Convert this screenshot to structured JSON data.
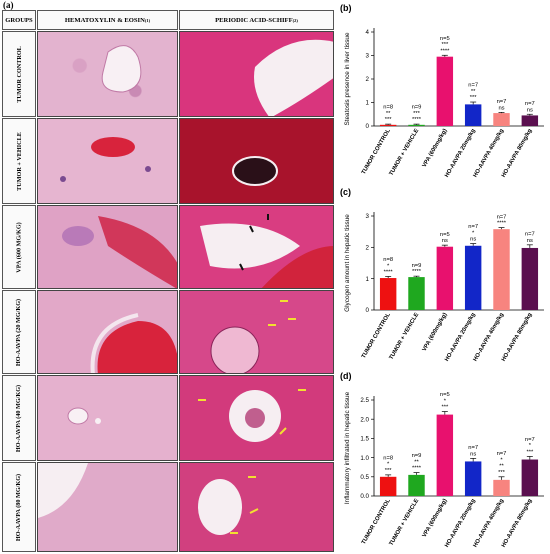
{
  "panel_a": {
    "label": "(a)",
    "groups_header": "GROUPS",
    "he_header": "HEMATOXYLIN & EOSIN",
    "he_sup": "(1)",
    "pas_header": "PERIODIC ACID-SCHIFF",
    "pas_sup": "(2)",
    "rows": [
      {
        "label": "TUMOR CONTROL"
      },
      {
        "label": "TUMOR + VEHICLE"
      },
      {
        "label": "VPA (600 MG/KG)"
      },
      {
        "label": "HO-AAVPA (20 MG/KG)"
      },
      {
        "label": "HO-AAVPA (40 MG/KG)"
      },
      {
        "label": "HO-AAVPA (80 MG/KG)"
      }
    ]
  },
  "chart_data": [
    {
      "type": "bar",
      "panel_label": "(b)",
      "ylabel": "Steatosis presence in liver tissue",
      "ylim": [
        0,
        4
      ],
      "yticks": [
        "0",
        "1",
        "2",
        "3",
        "4"
      ],
      "categories": [
        "TUMOR CONTROL",
        "TUMOR + VEHICLE",
        "VPA (600mg/kg)",
        "HO-AAVPA 20mg/kg",
        "HO-AAVPA 40mg/kg",
        "HO-AAVPA 80mg/kg"
      ],
      "values": [
        0.05,
        0.05,
        2.95,
        0.92,
        0.55,
        0.45
      ],
      "errors": [
        0.03,
        0.03,
        0.06,
        0.1,
        0.03,
        0.05
      ],
      "colors": [
        "#ee1111",
        "#1fa81f",
        "#e8116e",
        "#1226c8",
        "#f7847f",
        "#5a0f4f"
      ],
      "annotations": [
        [
          "n=8",
          "**",
          "***"
        ],
        [
          "n=9",
          "***",
          "****"
        ],
        [
          "n=5",
          "***",
          "****"
        ],
        [
          "n=7",
          "**",
          "***"
        ],
        [
          "n=7",
          "ns"
        ],
        [
          "n=7",
          "ns"
        ]
      ]
    },
    {
      "type": "bar",
      "panel_label": "(c)",
      "ylabel": "Glycogen amount in hepatic tissue",
      "ylim": [
        0,
        3
      ],
      "yticks": [
        "0",
        "1",
        "2",
        "3"
      ],
      "categories": [
        "TUMOR CONTROL",
        "TUMOR + VEHICLE",
        "VPA (600mg/kg)",
        "HO-AAVPA 20mg/kg",
        "HO-AAVPA 40mg/kg",
        "HO-AAVPA 80mg/kg"
      ],
      "values": [
        1.02,
        1.05,
        2.02,
        2.05,
        2.58,
        1.98
      ],
      "errors": [
        0.05,
        0.03,
        0.05,
        0.07,
        0.05,
        0.1
      ],
      "colors": [
        "#ee1111",
        "#1fa81f",
        "#e8116e",
        "#1226c8",
        "#f7847f",
        "#5a0f4f"
      ],
      "annotations": [
        [
          "n=8",
          "*",
          "****"
        ],
        [
          "n=9",
          "****"
        ],
        [
          "n=5",
          "ns"
        ],
        [
          "n=7",
          "*",
          "ns"
        ],
        [
          "n=7",
          "****"
        ],
        [
          "n=7",
          "ns"
        ]
      ]
    },
    {
      "type": "bar",
      "panel_label": "(d)",
      "ylabel": "Inflammatory infiltrated in hepatic tissue",
      "ylim": [
        0,
        2.5
      ],
      "yticks": [
        "0.0",
        "0.5",
        "1.0",
        "1.5",
        "2.0",
        "2.5"
      ],
      "categories": [
        "TUMOR CONTROL",
        "TUMOR + VEHICLE",
        "VPA (600mg/kg)",
        "HO-AAVPA 20mg/kg",
        "HO-AAVPA 40mg/kg",
        "HO-AAVPA 80mg/kg"
      ],
      "values": [
        0.5,
        0.55,
        2.12,
        0.9,
        0.42,
        0.95
      ],
      "errors": [
        0.05,
        0.06,
        0.08,
        0.08,
        0.08,
        0.08
      ],
      "colors": [
        "#ee1111",
        "#1fa81f",
        "#e8116e",
        "#1226c8",
        "#f7847f",
        "#5a0f4f"
      ],
      "annotations": [
        [
          "n=8",
          "*",
          "***"
        ],
        [
          "n=9",
          "**",
          "****"
        ],
        [
          "n=5",
          "*",
          "***"
        ],
        [
          "n=7",
          "ns"
        ],
        [
          "n=7",
          "*",
          "**",
          "***"
        ],
        [
          "n=7",
          "*",
          "***"
        ]
      ]
    }
  ]
}
